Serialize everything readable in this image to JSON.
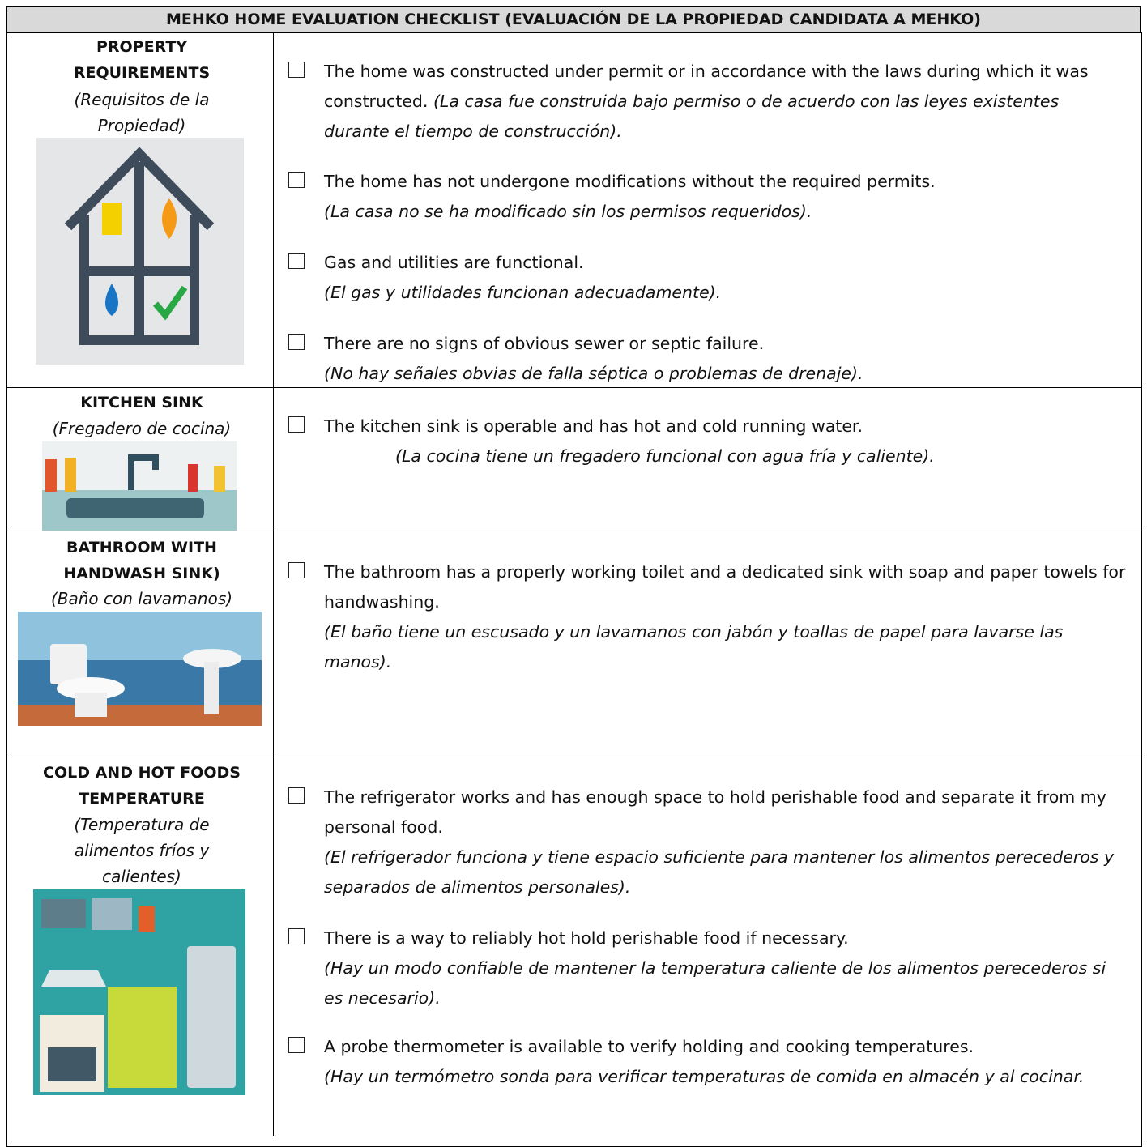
{
  "title": "MEHKO HOME EVALUATION CHECKLIST (EVALUACIÓN DE LA PROPIEDAD CANDIDATA A MEHKO)",
  "sections": [
    {
      "heading": "PROPERTY REQUIREMENTS",
      "subheading": "(Requisitos de la Propiedad)",
      "items": [
        {
          "en": "The home was constructed under permit or in accordance with the laws during which it was constructed.",
          "es": "(La casa fue construida bajo permiso o de acuerdo con las leyes existentes durante el tiempo de construcción)."
        },
        {
          "en": "The home has not undergone modifications without the required permits.",
          "es": "(La casa no se ha modificado sin los permisos requeridos)."
        },
        {
          "en": "Gas and utilities are functional.",
          "es": "(El gas y utilidades funcionan adecuadamente)."
        },
        {
          "en": "There are no signs of obvious sewer or septic failure.",
          "es": "(No hay señales obvias de falla séptica o problemas de drenaje)."
        }
      ]
    },
    {
      "heading": "KITCHEN SINK",
      "subheading": "(Fregadero de cocina)",
      "items": [
        {
          "en": "The kitchen sink is operable and has hot and cold running water.",
          "es": "(La cocina tiene un fregadero funcional con agua fría y caliente)."
        }
      ]
    },
    {
      "heading": "BATHROOM WITH HANDWASH SINK)",
      "subheading": "(Baño con lavamanos)",
      "items": [
        {
          "en": "The bathroom has a properly working toilet and a dedicated sink with soap and paper towels for handwashing.",
          "es": "(El baño tiene un escusado y un lavamanos con jabón y toallas de papel para lavarse las manos)."
        }
      ]
    },
    {
      "heading": "COLD AND HOT FOODS TEMPERATURE",
      "subheading": "(Temperatura de alimentos fríos y calientes)",
      "items": [
        {
          "en": "The refrigerator works and has enough space to hold perishable food and separate it from my personal food.",
          "es": "(El refrigerador funciona y tiene espacio suficiente para mantener los alimentos perecederos y separados de alimentos personales)."
        },
        {
          "en": "There is a way to reliably hot hold perishable food if necessary.",
          "es": "(Hay un modo confiable de mantener la temperatura caliente de los alimentos perecederos si es necesario)."
        },
        {
          "en": "A probe thermometer is available to verify holding and cooking temperatures.",
          "es": "(Hay un termómetro sonda para verificar temperaturas de comida en almacén y al cocinar."
        }
      ]
    }
  ]
}
